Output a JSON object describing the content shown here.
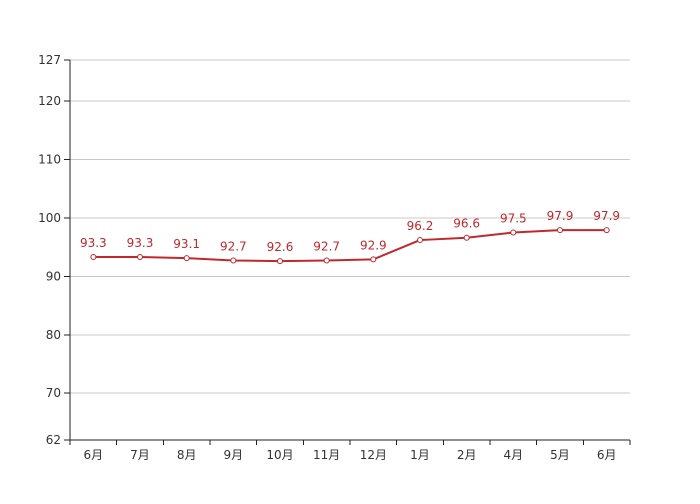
{
  "chart_data": {
    "type": "line",
    "categories": [
      "6月",
      "7月",
      "8月",
      "9月",
      "10月",
      "11月",
      "12月",
      "1月",
      "2月",
      "4月",
      "5月",
      "6月"
    ],
    "series": [
      {
        "values": [
          93.3,
          93.3,
          93.1,
          92.7,
          92.6,
          92.7,
          92.9,
          96.2,
          96.6,
          97.5,
          97.9,
          97.9
        ]
      }
    ],
    "ylim": [
      62,
      127
    ],
    "yticks": [
      62,
      70,
      80,
      90,
      100,
      110,
      120,
      127
    ],
    "grid": true,
    "data_labels": true,
    "colors": {
      "line": "#c0282d",
      "grid": "#c8c8c8",
      "axis": "#222222",
      "text": "#333333"
    }
  }
}
